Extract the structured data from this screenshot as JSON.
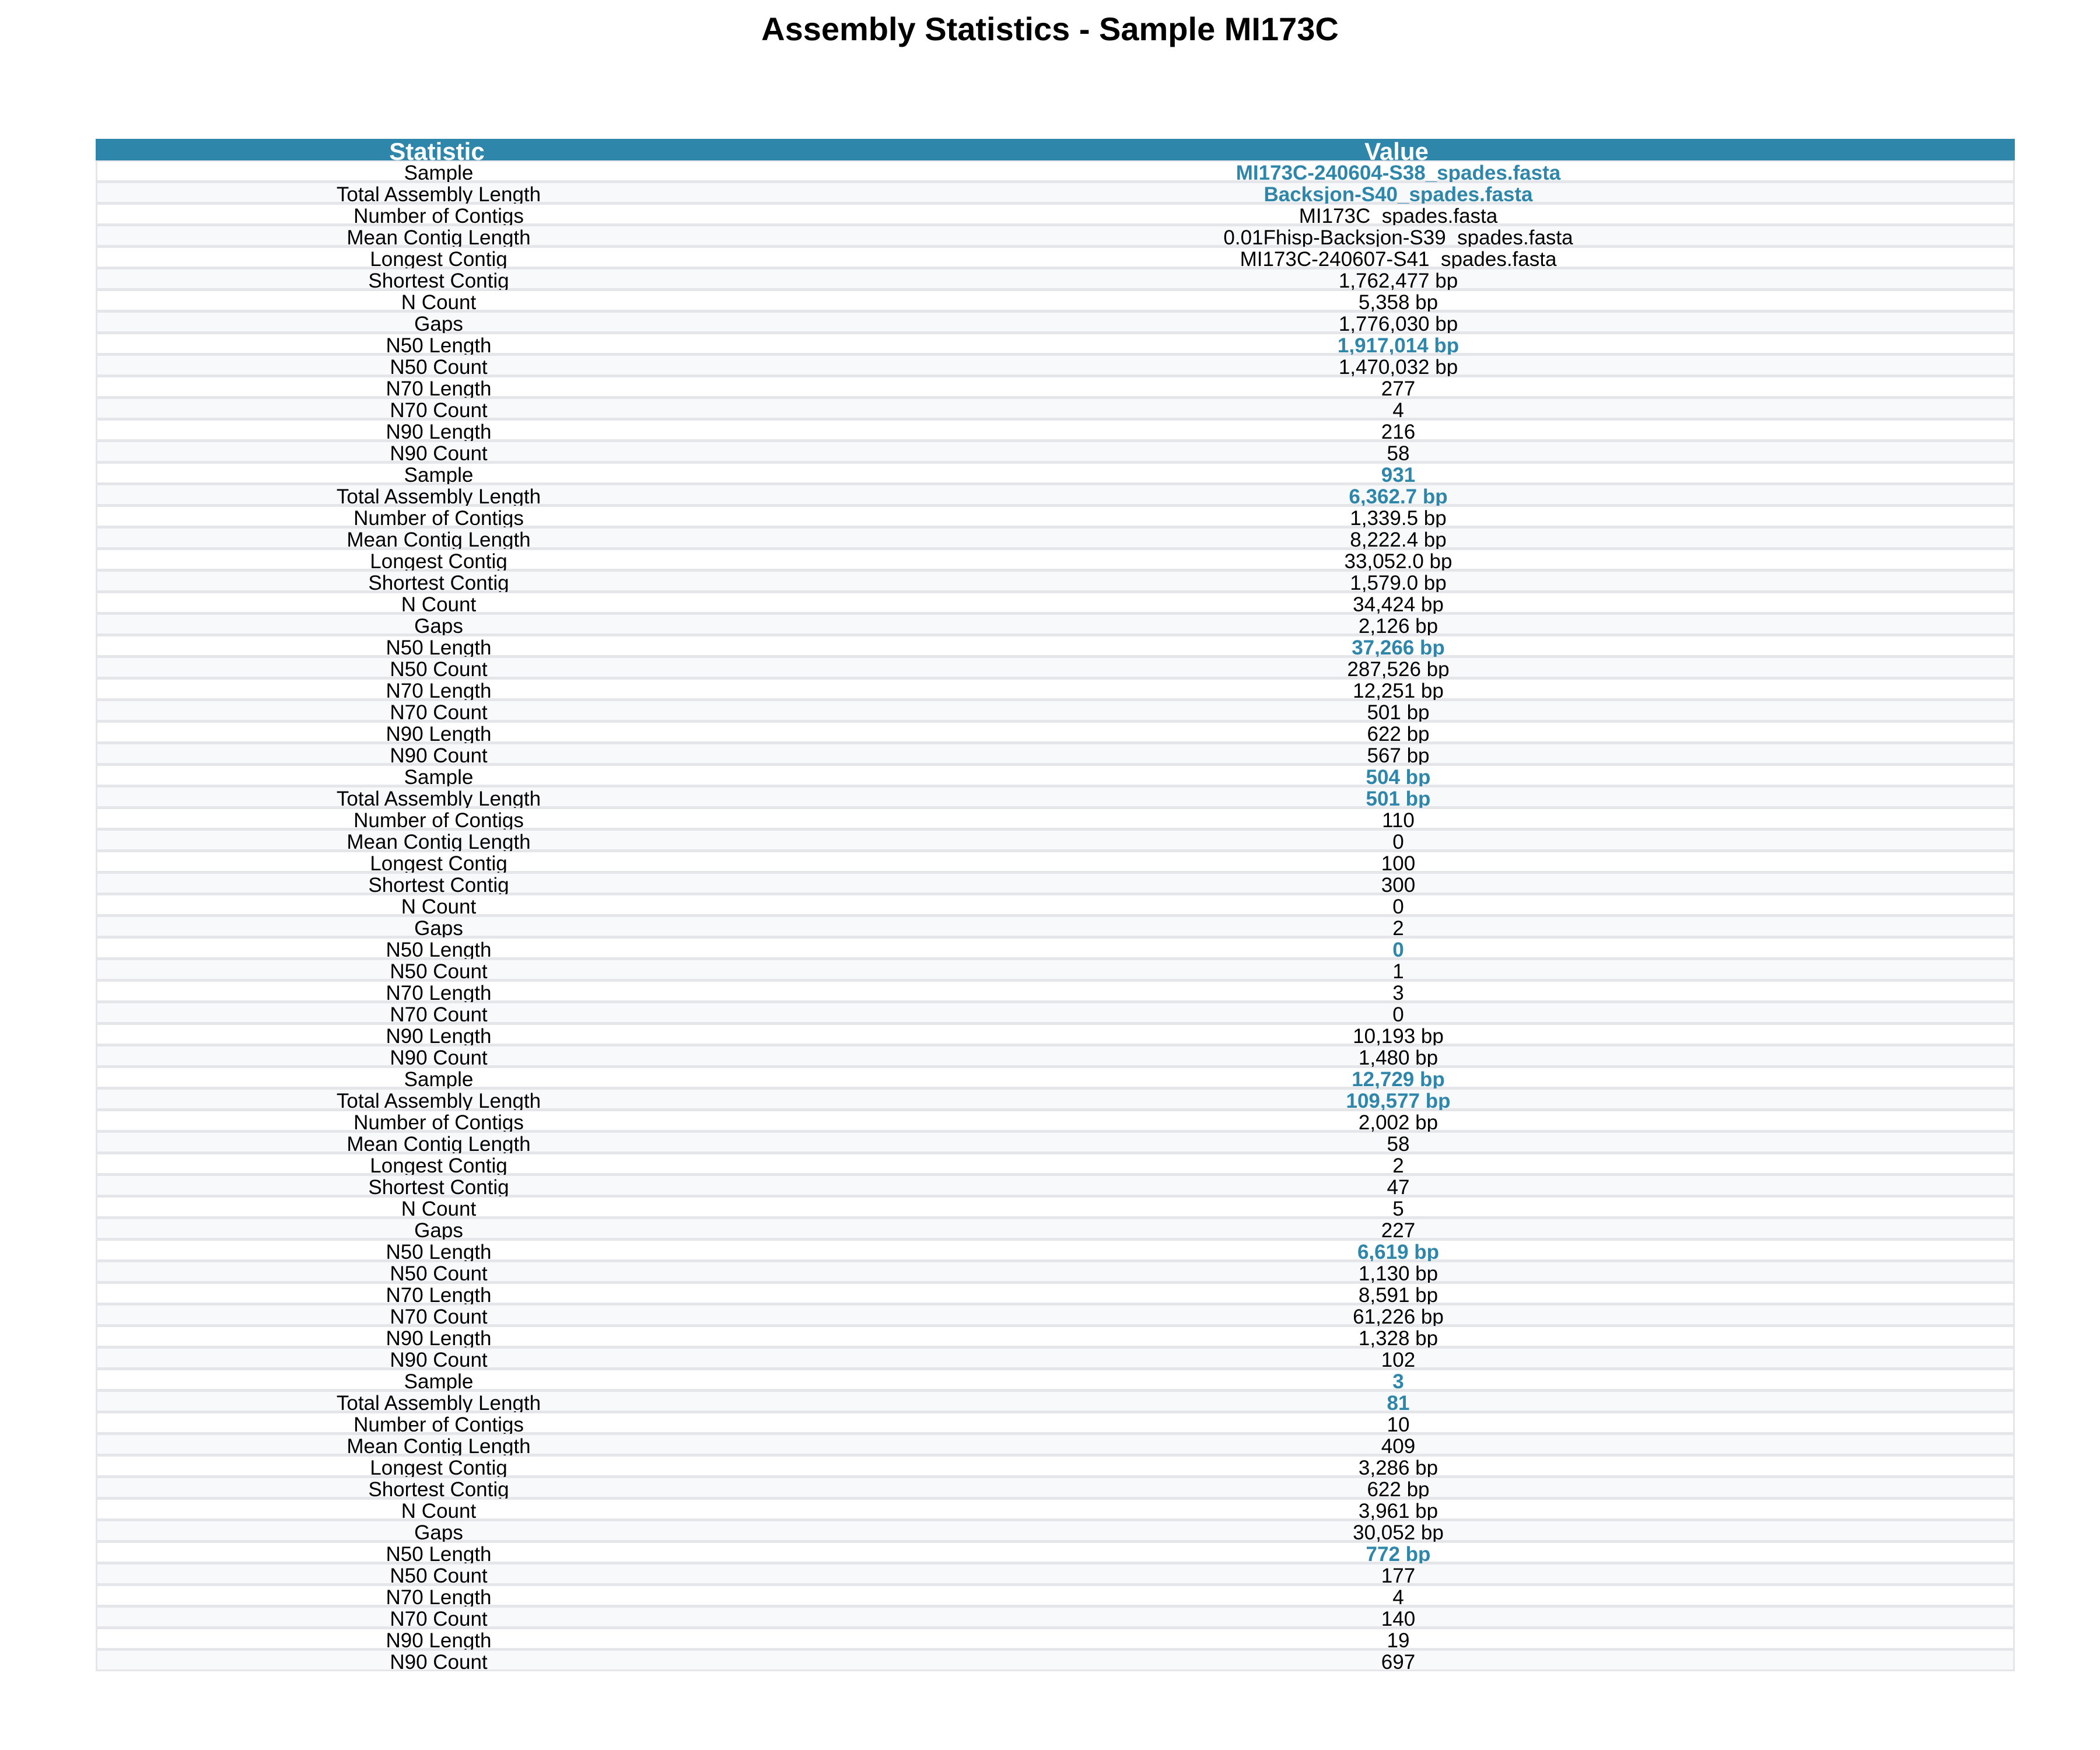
{
  "title": "Assembly Statistics - Sample MI173C",
  "colors": {
    "header_bg": "#2e86ab",
    "header_text": "#ffffff",
    "highlight_text": "#2e86ab",
    "row_border": "#e4e6ea",
    "row_alt_bg": "#f8f9fa"
  },
  "chart_data": {
    "type": "table",
    "columns": [
      "Statistic",
      "Value"
    ],
    "rows": [
      {
        "statistic": "Sample",
        "value": "MI173C-240604-S38_spades.fasta",
        "highlight": true
      },
      {
        "statistic": "Total Assembly Length",
        "value": "Backsjon-S40_spades.fasta",
        "highlight": true
      },
      {
        "statistic": "Number of Contigs",
        "value": "MI173C_spades.fasta",
        "highlight": false
      },
      {
        "statistic": "Mean Contig Length",
        "value": "0.01Fhisp-Backsjon-S39_spades.fasta",
        "highlight": false
      },
      {
        "statistic": "Longest Contig",
        "value": "MI173C-240607-S41_spades.fasta",
        "highlight": false
      },
      {
        "statistic": "Shortest Contig",
        "value": "1,762,477 bp",
        "highlight": false
      },
      {
        "statistic": "N Count",
        "value": "5,358 bp",
        "highlight": false
      },
      {
        "statistic": "Gaps",
        "value": "1,776,030 bp",
        "highlight": false
      },
      {
        "statistic": "N50 Length",
        "value": "1,917,014 bp",
        "highlight": true
      },
      {
        "statistic": "N50 Count",
        "value": "1,470,032 bp",
        "highlight": false
      },
      {
        "statistic": "N70 Length",
        "value": "277",
        "highlight": false
      },
      {
        "statistic": "N70 Count",
        "value": "4",
        "highlight": false
      },
      {
        "statistic": "N90 Length",
        "value": "216",
        "highlight": false
      },
      {
        "statistic": "N90 Count",
        "value": "58",
        "highlight": false
      },
      {
        "statistic": "Sample",
        "value": "931",
        "highlight": true
      },
      {
        "statistic": "Total Assembly Length",
        "value": "6,362.7 bp",
        "highlight": true
      },
      {
        "statistic": "Number of Contigs",
        "value": "1,339.5 bp",
        "highlight": false
      },
      {
        "statistic": "Mean Contig Length",
        "value": "8,222.4 bp",
        "highlight": false
      },
      {
        "statistic": "Longest Contig",
        "value": "33,052.0 bp",
        "highlight": false
      },
      {
        "statistic": "Shortest Contig",
        "value": "1,579.0 bp",
        "highlight": false
      },
      {
        "statistic": "N Count",
        "value": "34,424 bp",
        "highlight": false
      },
      {
        "statistic": "Gaps",
        "value": "2,126 bp",
        "highlight": false
      },
      {
        "statistic": "N50 Length",
        "value": "37,266 bp",
        "highlight": true
      },
      {
        "statistic": "N50 Count",
        "value": "287,526 bp",
        "highlight": false
      },
      {
        "statistic": "N70 Length",
        "value": "12,251 bp",
        "highlight": false
      },
      {
        "statistic": "N70 Count",
        "value": "501 bp",
        "highlight": false
      },
      {
        "statistic": "N90 Length",
        "value": "622 bp",
        "highlight": false
      },
      {
        "statistic": "N90 Count",
        "value": "567 bp",
        "highlight": false
      },
      {
        "statistic": "Sample",
        "value": "504 bp",
        "highlight": true
      },
      {
        "statistic": "Total Assembly Length",
        "value": "501 bp",
        "highlight": true
      },
      {
        "statistic": "Number of Contigs",
        "value": "110",
        "highlight": false
      },
      {
        "statistic": "Mean Contig Length",
        "value": "0",
        "highlight": false
      },
      {
        "statistic": "Longest Contig",
        "value": "100",
        "highlight": false
      },
      {
        "statistic": "Shortest Contig",
        "value": "300",
        "highlight": false
      },
      {
        "statistic": "N Count",
        "value": "0",
        "highlight": false
      },
      {
        "statistic": "Gaps",
        "value": "2",
        "highlight": false
      },
      {
        "statistic": "N50 Length",
        "value": "0",
        "highlight": true
      },
      {
        "statistic": "N50 Count",
        "value": "1",
        "highlight": false
      },
      {
        "statistic": "N70 Length",
        "value": "3",
        "highlight": false
      },
      {
        "statistic": "N70 Count",
        "value": "0",
        "highlight": false
      },
      {
        "statistic": "N90 Length",
        "value": "10,193 bp",
        "highlight": false
      },
      {
        "statistic": "N90 Count",
        "value": "1,480 bp",
        "highlight": false
      },
      {
        "statistic": "Sample",
        "value": "12,729 bp",
        "highlight": true
      },
      {
        "statistic": "Total Assembly Length",
        "value": "109,577 bp",
        "highlight": true
      },
      {
        "statistic": "Number of Contigs",
        "value": "2,002 bp",
        "highlight": false
      },
      {
        "statistic": "Mean Contig Length",
        "value": "58",
        "highlight": false
      },
      {
        "statistic": "Longest Contig",
        "value": "2",
        "highlight": false
      },
      {
        "statistic": "Shortest Contig",
        "value": "47",
        "highlight": false
      },
      {
        "statistic": "N Count",
        "value": "5",
        "highlight": false
      },
      {
        "statistic": "Gaps",
        "value": "227",
        "highlight": false
      },
      {
        "statistic": "N50 Length",
        "value": "6,619 bp",
        "highlight": true
      },
      {
        "statistic": "N50 Count",
        "value": "1,130 bp",
        "highlight": false
      },
      {
        "statistic": "N70 Length",
        "value": "8,591 bp",
        "highlight": false
      },
      {
        "statistic": "N70 Count",
        "value": "61,226 bp",
        "highlight": false
      },
      {
        "statistic": "N90 Length",
        "value": "1,328 bp",
        "highlight": false
      },
      {
        "statistic": "N90 Count",
        "value": "102",
        "highlight": false
      },
      {
        "statistic": "Sample",
        "value": "3",
        "highlight": true
      },
      {
        "statistic": "Total Assembly Length",
        "value": "81",
        "highlight": true
      },
      {
        "statistic": "Number of Contigs",
        "value": "10",
        "highlight": false
      },
      {
        "statistic": "Mean Contig Length",
        "value": "409",
        "highlight": false
      },
      {
        "statistic": "Longest Contig",
        "value": "3,286 bp",
        "highlight": false
      },
      {
        "statistic": "Shortest Contig",
        "value": "622 bp",
        "highlight": false
      },
      {
        "statistic": "N Count",
        "value": "3,961 bp",
        "highlight": false
      },
      {
        "statistic": "Gaps",
        "value": "30,052 bp",
        "highlight": false
      },
      {
        "statistic": "N50 Length",
        "value": "772 bp",
        "highlight": true
      },
      {
        "statistic": "N50 Count",
        "value": "177",
        "highlight": false
      },
      {
        "statistic": "N70 Length",
        "value": "4",
        "highlight": false
      },
      {
        "statistic": "N70 Count",
        "value": "140",
        "highlight": false
      },
      {
        "statistic": "N90 Length",
        "value": "19",
        "highlight": false
      },
      {
        "statistic": "N90 Count",
        "value": "697",
        "highlight": false
      }
    ]
  }
}
